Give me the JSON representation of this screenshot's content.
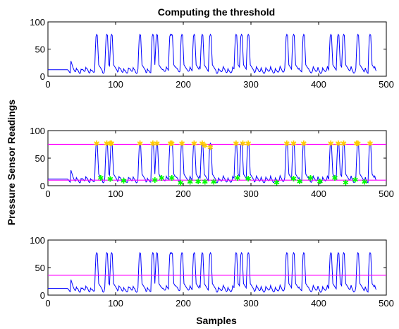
{
  "chart_data": {
    "type": "line",
    "title": "Computing the threshold",
    "xlabel": "Samples",
    "ylabel": "Pressure Sensor Readings",
    "xlim": [
      0,
      500
    ],
    "ylim": [
      0,
      100
    ],
    "xticks": [
      0,
      100,
      200,
      300,
      400,
      500
    ],
    "yticks": [
      0,
      50,
      100
    ],
    "grid": false,
    "colors": {
      "signal": "#0000ff",
      "threshold": "#ff00ff",
      "peaks": "#ffcc00",
      "troughs": "#00ff00"
    },
    "signal_peak_samples": [
      72,
      87,
      94,
      136,
      155,
      161,
      181,
      183,
      198,
      216,
      228,
      240,
      278,
      286,
      296,
      353,
      363,
      378,
      418,
      429,
      437,
      458,
      476
    ],
    "signal_peak_value": 77,
    "signal_baseline": 10,
    "subplots": [
      {
        "panel": "top",
        "series": [
          {
            "role": "signal",
            "color": "#0000ff"
          }
        ]
      },
      {
        "panel": "middle",
        "series": [
          {
            "role": "signal",
            "color": "#0000ff"
          },
          {
            "role": "threshold",
            "color": "#ff00ff",
            "y": 75
          },
          {
            "role": "threshold",
            "color": "#ff00ff",
            "y": 10
          },
          {
            "role": "markers",
            "color": "#ffcc00",
            "x": [
              72,
              87,
              92,
              94,
              136,
              155,
              161,
              181,
              183,
              198,
              216,
              228,
              232,
              240,
              278,
              288,
              296,
              353,
              363,
              378,
              418,
              429,
              437,
              456,
              458,
              476
            ],
            "y": [
              77,
              77,
              77,
              77,
              77,
              77,
              77,
              77,
              77,
              77,
              77,
              77,
              73,
              70,
              77,
              77,
              77,
              77,
              77,
              77,
              77,
              77,
              77,
              77,
              77,
              77
            ]
          },
          {
            "role": "markers",
            "color": "#00ff00",
            "x": [
              78,
              92,
              112,
              158,
              168,
              183,
              196,
              210,
              222,
              232,
              245,
              280,
              296,
              338,
              363,
              372,
              388,
              402,
              424,
              440,
              454,
              468
            ],
            "y": [
              14,
              12,
              9,
              10,
              14,
              14,
              5,
              7,
              8,
              7,
              7,
              14,
              13,
              6,
              13,
              8,
              14,
              8,
              14,
              6,
              11,
              7
            ]
          }
        ]
      },
      {
        "panel": "bottom",
        "series": [
          {
            "role": "signal",
            "color": "#0000ff"
          },
          {
            "role": "threshold",
            "color": "#ff00ff",
            "y": 36
          }
        ]
      }
    ]
  }
}
